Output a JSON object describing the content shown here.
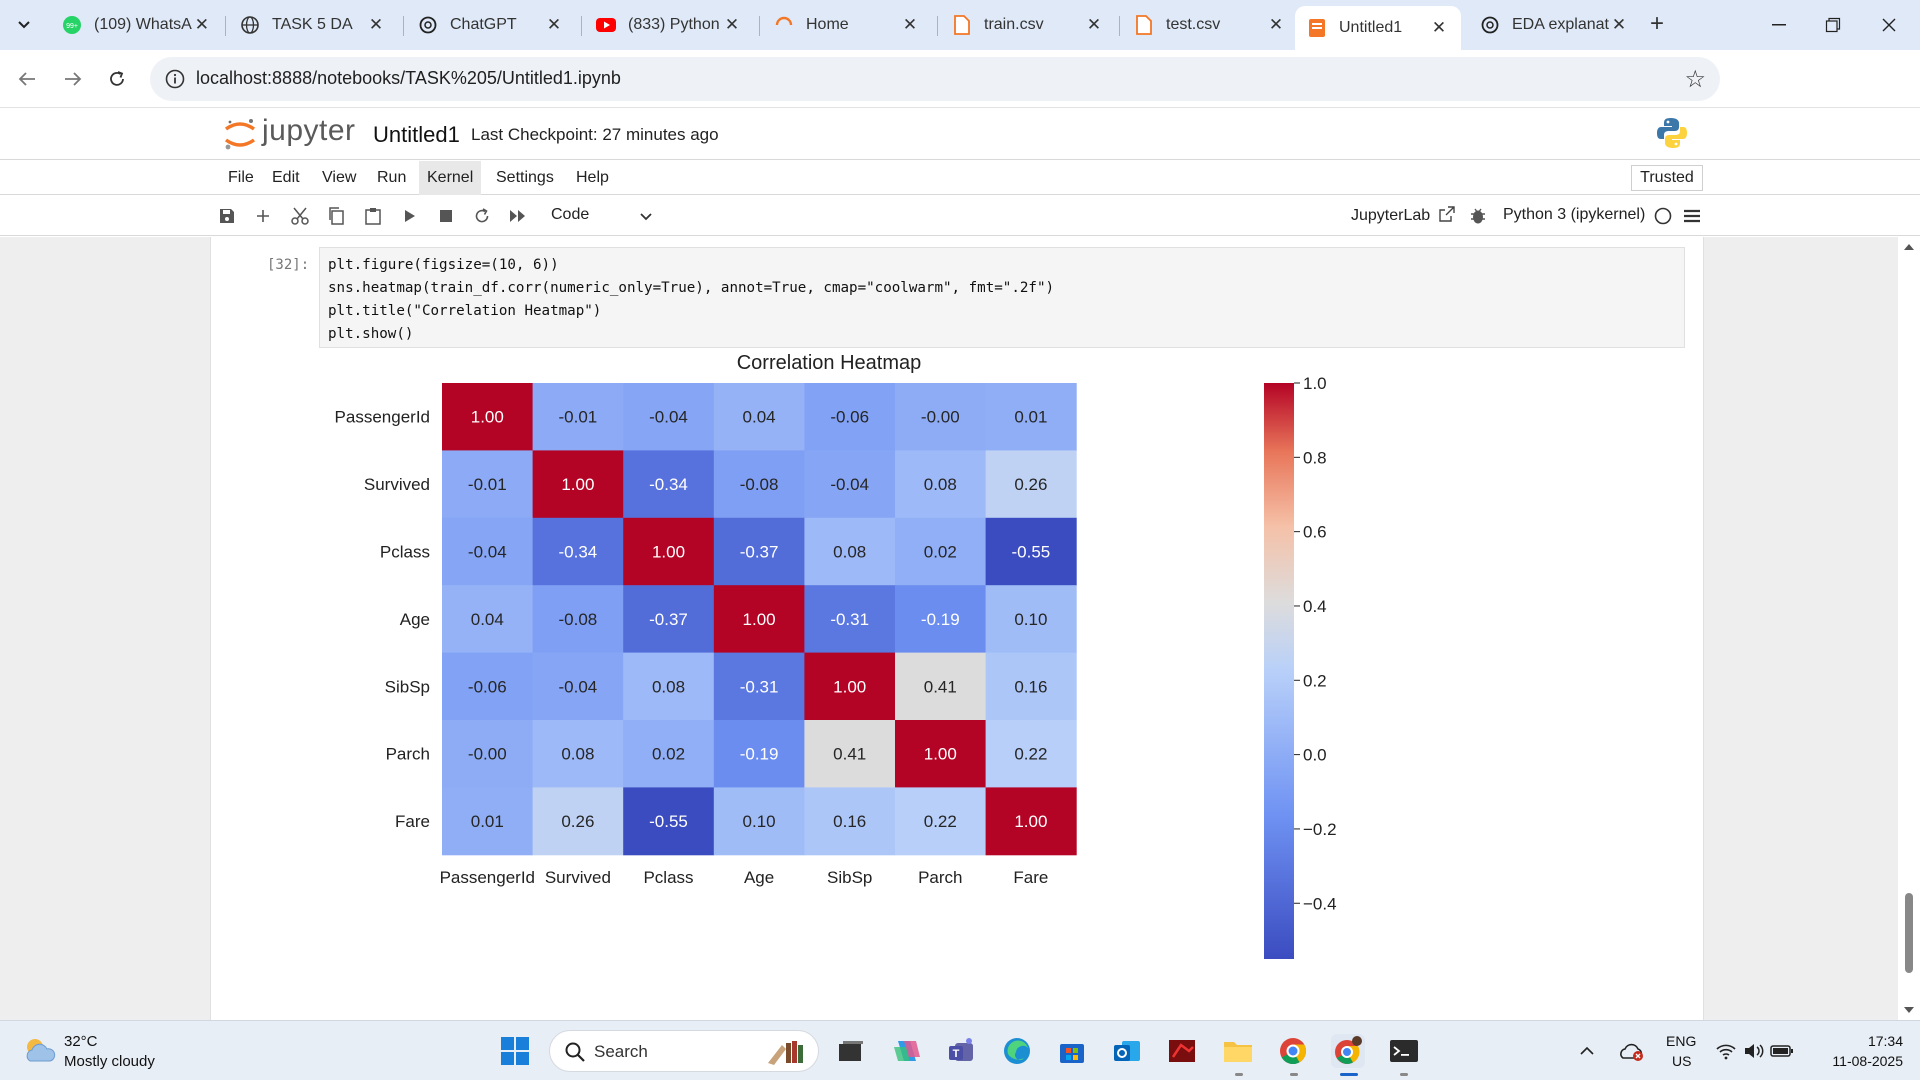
{
  "browser": {
    "tabs": [
      {
        "title": "(109) WhatsA",
        "icon": "whatsapp-icon"
      },
      {
        "title": "TASK 5 DA",
        "icon": "globe-icon"
      },
      {
        "title": "ChatGPT",
        "icon": "chatgpt-icon"
      },
      {
        "title": "(833) Python",
        "icon": "youtube-icon"
      },
      {
        "title": "Home",
        "icon": "jupyter-loading-icon"
      },
      {
        "title": "train.csv",
        "icon": "file-icon"
      },
      {
        "title": "test.csv",
        "icon": "file-icon"
      },
      {
        "title": "Untitled1",
        "icon": "notebook-icon",
        "active": true
      },
      {
        "title": "EDA explanat",
        "icon": "chatgpt-icon"
      }
    ],
    "whatsapp_badge": "99+",
    "url": "localhost:8888/notebooks/TASK%205/Untitled1.ipynb"
  },
  "jupyter": {
    "logo_text": "jupyter",
    "notebook_name": "Untitled1",
    "checkpoint": "Last Checkpoint: 27 minutes ago",
    "menu": [
      "File",
      "Edit",
      "View",
      "Run",
      "Kernel",
      "Settings",
      "Help"
    ],
    "active_menu": "Kernel",
    "trusted": "Trusted",
    "cell_type": "Code",
    "jupyterlab_link": "JupyterLab",
    "kernel": "Python 3 (ipykernel)"
  },
  "cell": {
    "prompt": "[32]:",
    "code_lines": [
      "plt.figure(figsize=(10, 6))",
      "sns.heatmap(train_df.corr(numeric_only=True), annot=True, cmap=\"coolwarm\", fmt=\".2f\")",
      "plt.title(\"Correlation Heatmap\")",
      "plt.show()"
    ]
  },
  "chart_data": {
    "type": "heatmap",
    "title": "Correlation Heatmap",
    "x_labels": [
      "PassengerId",
      "Survived",
      "Pclass",
      "Age",
      "SibSp",
      "Parch",
      "Fare"
    ],
    "y_labels": [
      "PassengerId",
      "Survived",
      "Pclass",
      "Age",
      "SibSp",
      "Parch",
      "Fare"
    ],
    "matrix": [
      [
        1.0,
        -0.01,
        -0.04,
        0.04,
        -0.06,
        -0.0,
        0.01
      ],
      [
        -0.01,
        1.0,
        -0.34,
        -0.08,
        -0.04,
        0.08,
        0.26
      ],
      [
        -0.04,
        -0.34,
        1.0,
        -0.37,
        0.08,
        0.02,
        -0.55
      ],
      [
        0.04,
        -0.08,
        -0.37,
        1.0,
        -0.31,
        -0.19,
        0.1
      ],
      [
        -0.06,
        -0.04,
        0.08,
        -0.31,
        1.0,
        0.41,
        0.16
      ],
      [
        -0.0,
        0.08,
        0.02,
        -0.19,
        0.41,
        1.0,
        0.22
      ],
      [
        0.01,
        0.26,
        -0.55,
        0.1,
        0.16,
        0.22,
        1.0
      ]
    ],
    "colormap": "coolwarm",
    "colorbar_range": [
      -0.55,
      1.0
    ],
    "colorbar_ticks": [
      1.0,
      0.8,
      0.6,
      0.4,
      0.2,
      0.0,
      -0.2,
      -0.4
    ],
    "colorbar_tick_labels": [
      "1.0",
      "0.8",
      "0.6",
      "0.4",
      "0.2",
      "0.0",
      "−0.2",
      "−0.4"
    ],
    "annotation_format": ".2f",
    "annotation_labels": [
      [
        "1.00",
        "-0.01",
        "-0.04",
        "0.04",
        "-0.06",
        "-0.00",
        "0.01"
      ],
      [
        "-0.01",
        "1.00",
        "-0.34",
        "-0.08",
        "-0.04",
        "0.08",
        "0.26"
      ],
      [
        "-0.04",
        "-0.34",
        "1.00",
        "-0.37",
        "0.08",
        "0.02",
        "-0.55"
      ],
      [
        "0.04",
        "-0.08",
        "-0.37",
        "1.00",
        "-0.31",
        "-0.19",
        "0.10"
      ],
      [
        "-0.06",
        "-0.04",
        "0.08",
        "-0.31",
        "1.00",
        "0.41",
        "0.16"
      ],
      [
        "-0.00",
        "0.08",
        "0.02",
        "-0.19",
        "0.41",
        "1.00",
        "0.22"
      ],
      [
        "0.01",
        "0.26",
        "-0.55",
        "0.10",
        "0.16",
        "0.22",
        "1.00"
      ]
    ]
  },
  "taskbar": {
    "weather_temp": "32°C",
    "weather_desc": "Mostly cloudy",
    "search_label": "Search",
    "lang1": "ENG",
    "lang2": "US",
    "time": "17:34",
    "date": "11-08-2025"
  }
}
